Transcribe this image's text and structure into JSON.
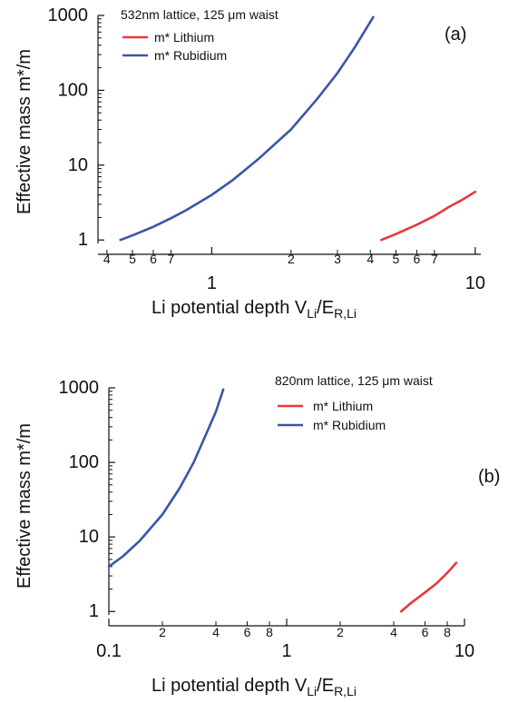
{
  "chart_data": [
    {
      "type": "line",
      "panel_label": "(a)",
      "legend_title": "532nm lattice, 125 μm waist",
      "legend_placement": "top-left",
      "xlabel_main": "Li potential depth V",
      "xlabel_sub1": "Li",
      "xlabel_mid": "/E",
      "xlabel_sub2": "R,Li",
      "ylabel": "Effective mass m*/m",
      "xscale": "log",
      "yscale": "log",
      "xlim": [
        0.37,
        10.5
      ],
      "ylim": [
        0.9,
        1000
      ],
      "y_ticks": [
        {
          "value": 1,
          "label": "1"
        },
        {
          "value": 10,
          "label": "10"
        },
        {
          "value": 100,
          "label": "100"
        },
        {
          "value": 1000,
          "label": "1000"
        }
      ],
      "x_major_ticks": [
        {
          "value": 1,
          "label": "1"
        },
        {
          "value": 10,
          "label": "10"
        }
      ],
      "x_minor_ticks": [
        {
          "value": 0.4,
          "label": "4"
        },
        {
          "value": 0.5,
          "label": "5"
        },
        {
          "value": 0.6,
          "label": "6"
        },
        {
          "value": 0.7,
          "label": "7"
        },
        {
          "value": 2,
          "label": "2"
        },
        {
          "value": 3,
          "label": "3"
        },
        {
          "value": 4,
          "label": "4"
        },
        {
          "value": 5,
          "label": "5"
        },
        {
          "value": 6,
          "label": "6"
        },
        {
          "value": 7,
          "label": "7"
        }
      ],
      "series": [
        {
          "name": "m* Lithium",
          "color": "#e8383d",
          "x": [
            4.4,
            5.0,
            6.0,
            7.0,
            8.0,
            9.0,
            10.0
          ],
          "y": [
            1.0,
            1.2,
            1.6,
            2.1,
            2.8,
            3.5,
            4.4
          ]
        },
        {
          "name": "m* Rubidium",
          "color": "#3a56a8",
          "x": [
            0.45,
            0.5,
            0.6,
            0.7,
            0.8,
            1.0,
            1.2,
            1.5,
            2.0,
            2.5,
            3.0,
            3.5,
            4.1
          ],
          "y": [
            1.0,
            1.15,
            1.5,
            1.95,
            2.5,
            4.0,
            6.3,
            12,
            30,
            75,
            170,
            380,
            950
          ]
        }
      ]
    },
    {
      "type": "line",
      "panel_label": "(b)",
      "legend_title": "820nm lattice, 125 μm waist",
      "legend_placement": "top-right",
      "xlabel_main": "Li potential depth V",
      "xlabel_sub1": "Li",
      "xlabel_mid": "/E",
      "xlabel_sub2": "R,Li",
      "ylabel": "Effective mass m*/m",
      "xscale": "log",
      "yscale": "log",
      "xlim": [
        0.1,
        10
      ],
      "ylim": [
        0.9,
        1000
      ],
      "y_ticks": [
        {
          "value": 1,
          "label": "1"
        },
        {
          "value": 10,
          "label": "10"
        },
        {
          "value": 100,
          "label": "100"
        },
        {
          "value": 1000,
          "label": "1000"
        }
      ],
      "x_major_ticks": [
        {
          "value": 0.1,
          "label": "0.1"
        },
        {
          "value": 1,
          "label": "1"
        },
        {
          "value": 10,
          "label": "10"
        }
      ],
      "x_minor_ticks": [
        {
          "value": 0.2,
          "label": "2"
        },
        {
          "value": 0.4,
          "label": "4"
        },
        {
          "value": 0.6,
          "label": "6"
        },
        {
          "value": 0.8,
          "label": "8"
        },
        {
          "value": 2,
          "label": "2"
        },
        {
          "value": 4,
          "label": "4"
        },
        {
          "value": 6,
          "label": "6"
        },
        {
          "value": 8,
          "label": "8"
        }
      ],
      "series": [
        {
          "name": "m* Lithium",
          "color": "#e8383d",
          "x": [
            4.4,
            5.0,
            6.0,
            7.0,
            8.0,
            9.0
          ],
          "y": [
            1.0,
            1.3,
            1.8,
            2.4,
            3.3,
            4.5
          ]
        },
        {
          "name": "m* Rubidium",
          "color": "#3a56a8",
          "x": [
            0.1,
            0.12,
            0.15,
            0.2,
            0.25,
            0.3,
            0.35,
            0.4,
            0.44
          ],
          "y": [
            4.0,
            5.5,
            9,
            20,
            45,
            100,
            230,
            480,
            950
          ]
        }
      ]
    }
  ]
}
